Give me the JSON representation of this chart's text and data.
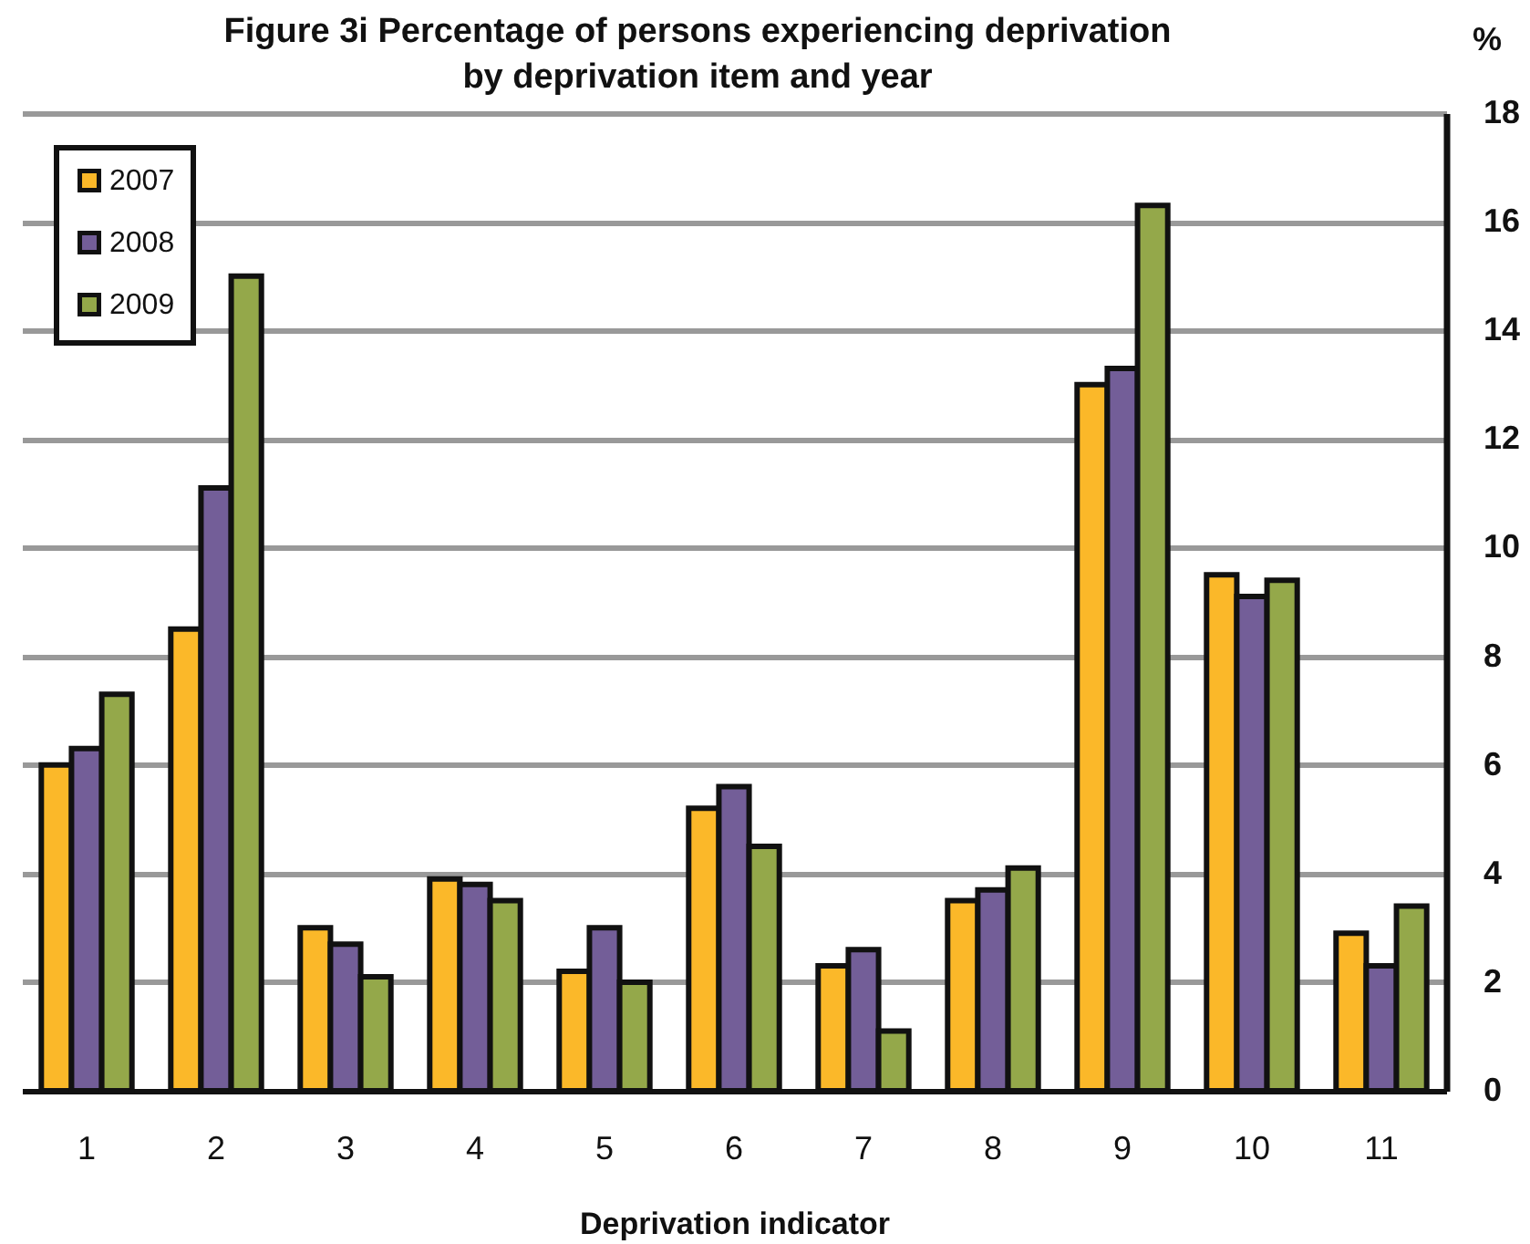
{
  "chart_data": {
    "type": "bar",
    "title": "Figure 3i Percentage of persons experiencing deprivation by deprivation item and year",
    "xlabel": "Deprivation indicator",
    "ylabel": "%",
    "categories": [
      "1",
      "2",
      "3",
      "4",
      "5",
      "6",
      "7",
      "8",
      "9",
      "10",
      "11"
    ],
    "series": [
      {
        "name": "2007",
        "color": "#fbb829",
        "values": [
          6.0,
          8.5,
          3.0,
          3.9,
          2.2,
          5.2,
          2.3,
          3.5,
          13.0,
          9.5,
          2.9
        ]
      },
      {
        "name": "2008",
        "color": "#735e98",
        "values": [
          6.3,
          11.1,
          2.7,
          3.8,
          3.0,
          5.6,
          2.6,
          3.7,
          13.3,
          9.1,
          2.3
        ]
      },
      {
        "name": "2009",
        "color": "#94a84a",
        "values": [
          7.3,
          15.0,
          2.1,
          3.5,
          2.0,
          4.5,
          1.1,
          4.1,
          16.3,
          9.4,
          3.4
        ]
      }
    ],
    "ylim": [
      0,
      18
    ],
    "yticks": [
      0,
      2,
      4,
      6,
      8,
      10,
      12,
      14,
      16,
      18
    ],
    "grid": "y",
    "legend": "top left"
  }
}
